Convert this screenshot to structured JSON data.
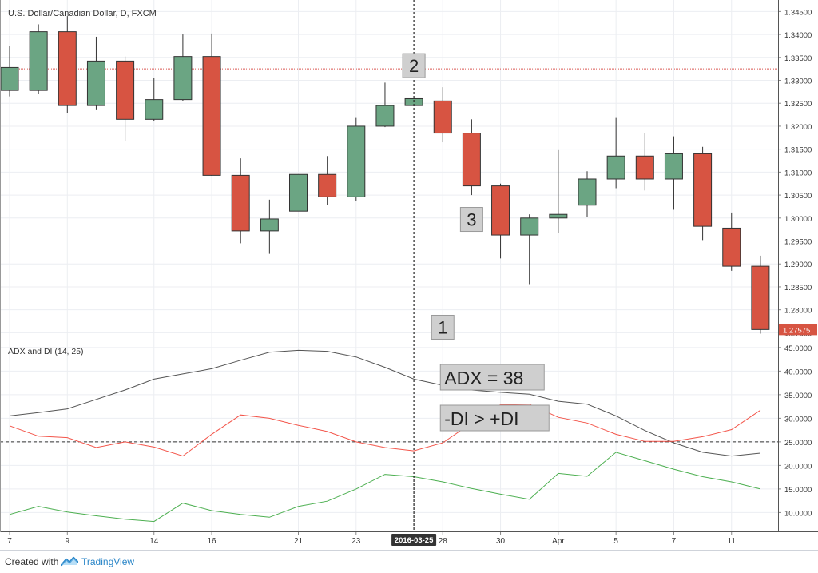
{
  "footer": {
    "created_with": "Created with",
    "brand": "TradingView",
    "brand_icon": "tradingview-logo-icon"
  },
  "colors": {
    "up": "#6ba583",
    "down": "#d75442",
    "adx": "#555555",
    "minus_di": "#f3554a",
    "plus_di": "#4caf50",
    "grid": "#eceef2",
    "hline": "#d9534f"
  },
  "chart_data": [
    {
      "type": "candlestick",
      "title": "U.S. Dollar/Canadian Dollar, D, FXCM",
      "x_labels": [
        "7",
        "9",
        "14",
        "16",
        "21",
        "23",
        "28",
        "30",
        "Apr",
        "5",
        "7",
        "11"
      ],
      "crosshair_label": "2016-03-25",
      "last_price_label": "1.27575",
      "ylim": [
        1.2735,
        1.3475
      ],
      "y_ticks": [
        "1.27500",
        "1.28000",
        "1.28500",
        "1.29000",
        "1.29500",
        "1.30000",
        "1.30500",
        "1.31000",
        "1.31500",
        "1.32000",
        "1.32500",
        "1.33000",
        "1.33500",
        "1.34000",
        "1.34500"
      ],
      "horizontal_line": 1.3325,
      "candles": [
        {
          "o": 1.3278,
          "h": 1.3375,
          "l": 1.3265,
          "c": 1.3328
        },
        {
          "o": 1.3278,
          "h": 1.3422,
          "l": 1.327,
          "c": 1.3406
        },
        {
          "o": 1.3406,
          "h": 1.344,
          "l": 1.3228,
          "c": 1.3245
        },
        {
          "o": 1.3245,
          "h": 1.3395,
          "l": 1.3235,
          "c": 1.3342
        },
        {
          "o": 1.3342,
          "h": 1.3352,
          "l": 1.3168,
          "c": 1.3215
        },
        {
          "o": 1.3215,
          "h": 1.3305,
          "l": 1.3212,
          "c": 1.3258
        },
        {
          "o": 1.3258,
          "h": 1.34,
          "l": 1.3255,
          "c": 1.3352
        },
        {
          "o": 1.3352,
          "h": 1.3402,
          "l": 1.3092,
          "c": 1.3093
        },
        {
          "o": 1.3093,
          "h": 1.313,
          "l": 1.2945,
          "c": 1.2972
        },
        {
          "o": 1.2972,
          "h": 1.304,
          "l": 1.2922,
          "c": 1.2998
        },
        {
          "o": 1.3015,
          "h": 1.3095,
          "l": 1.3015,
          "c": 1.3095
        },
        {
          "o": 1.3095,
          "h": 1.3135,
          "l": 1.3028,
          "c": 1.3046
        },
        {
          "o": 1.3046,
          "h": 1.3218,
          "l": 1.3038,
          "c": 1.32
        },
        {
          "o": 1.32,
          "h": 1.3295,
          "l": 1.3198,
          "c": 1.3245
        },
        {
          "o": 1.3245,
          "h": 1.3262,
          "l": 1.3245,
          "c": 1.326
        },
        {
          "o": 1.3255,
          "h": 1.3285,
          "l": 1.3165,
          "c": 1.3185
        },
        {
          "o": 1.3185,
          "h": 1.3215,
          "l": 1.305,
          "c": 1.307
        },
        {
          "o": 1.307,
          "h": 1.3075,
          "l": 1.2912,
          "c": 1.2963
        },
        {
          "o": 1.2963,
          "h": 1.3008,
          "l": 1.2856,
          "c": 1.3
        },
        {
          "o": 1.3,
          "h": 1.3148,
          "l": 1.2968,
          "c": 1.3008
        },
        {
          "o": 1.3028,
          "h": 1.3102,
          "l": 1.3002,
          "c": 1.3085
        },
        {
          "o": 1.3085,
          "h": 1.3218,
          "l": 1.3065,
          "c": 1.3135
        },
        {
          "o": 1.3135,
          "h": 1.3185,
          "l": 1.306,
          "c": 1.3085
        },
        {
          "o": 1.3085,
          "h": 1.3178,
          "l": 1.3018,
          "c": 1.314
        },
        {
          "o": 1.314,
          "h": 1.3155,
          "l": 1.2952,
          "c": 1.2982
        },
        {
          "o": 1.2978,
          "h": 1.3012,
          "l": 1.2885,
          "c": 1.2895
        },
        {
          "o": 1.2895,
          "h": 1.2918,
          "l": 1.2748,
          "c": 1.2757
        }
      ],
      "annotations": [
        {
          "label": "2",
          "candle": 14,
          "price": 1.3332
        },
        {
          "label": "3",
          "candle": 16,
          "price": 1.2997
        },
        {
          "label": "1",
          "candle": 15,
          "price": 1.2762
        }
      ]
    },
    {
      "type": "line",
      "title": "ADX and DI (14, 25)",
      "ylim": [
        6.0,
        46.5
      ],
      "y_ticks": [
        "10.0000",
        "15.0000",
        "20.0000",
        "25.0000",
        "30.0000",
        "35.0000",
        "40.0000",
        "45.0000"
      ],
      "threshold": 25,
      "series": [
        {
          "key": "adx",
          "values": [
            30.5,
            31.2,
            32.0,
            34.0,
            36.0,
            38.3,
            39.4,
            40.5,
            42.3,
            44.0,
            44.4,
            44.2,
            43.0,
            40.8,
            38.3,
            37.0,
            36.0,
            35.5,
            35.1,
            33.6,
            33.0,
            30.5,
            27.4,
            24.8,
            22.8,
            22.0,
            22.6
          ]
        },
        {
          "key": "minus_di",
          "values": [
            28.4,
            26.2,
            25.9,
            23.8,
            25.0,
            23.9,
            22.0,
            26.6,
            30.7,
            30.0,
            28.5,
            27.2,
            25.0,
            23.8,
            23.1,
            24.8,
            29.0,
            32.9,
            33.0,
            30.2,
            29.0,
            26.6,
            25.1,
            25.1,
            26.1,
            27.6,
            31.7
          ]
        },
        {
          "key": "plus_di",
          "values": [
            9.6,
            11.3,
            10.1,
            9.3,
            8.6,
            8.1,
            12.0,
            10.4,
            9.6,
            9.0,
            11.3,
            12.4,
            15.0,
            18.1,
            17.6,
            16.5,
            15.1,
            13.9,
            12.8,
            18.3,
            17.7,
            22.8,
            21.0,
            19.2,
            17.6,
            16.5,
            15.0
          ]
        }
      ],
      "annotations": [
        "ADX = 38",
        "-DI > +DI"
      ]
    }
  ]
}
